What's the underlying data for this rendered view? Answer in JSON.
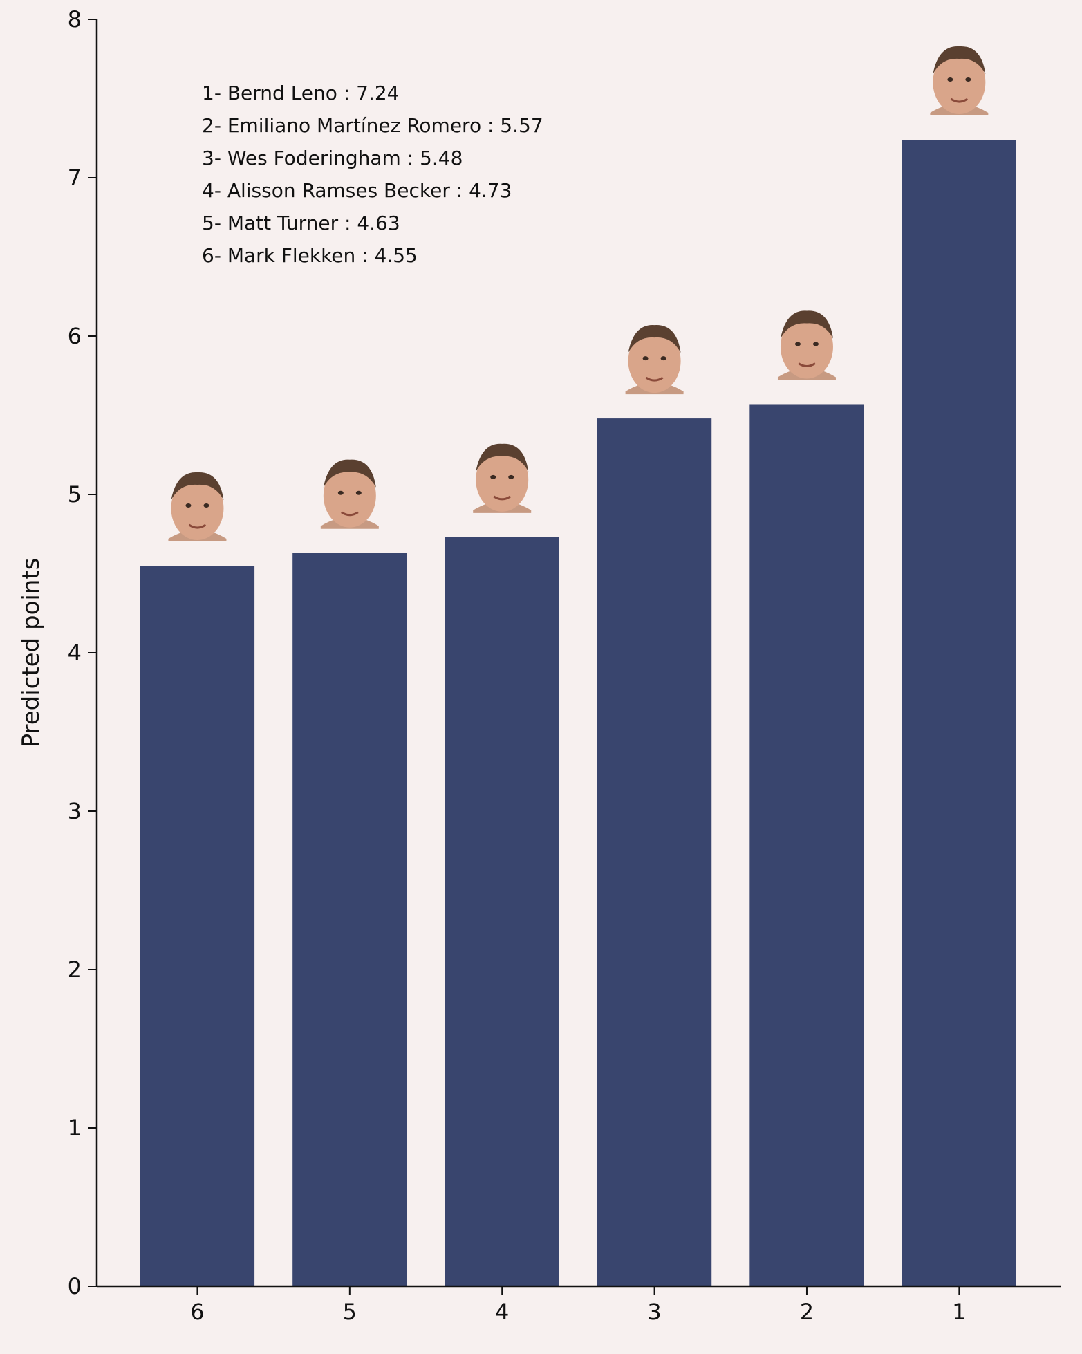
{
  "chart_data": {
    "type": "bar",
    "categories": [
      "6",
      "5",
      "4",
      "3",
      "2",
      "1"
    ],
    "values": [
      4.55,
      4.63,
      4.73,
      5.48,
      5.57,
      7.24
    ],
    "ylabel": "Predicted points",
    "xlabel": "",
    "ylim": [
      0,
      8
    ],
    "yticks": [
      0,
      1,
      2,
      3,
      4,
      5,
      6,
      7,
      8
    ],
    "bar_color": "#39456e",
    "grid": false,
    "annotations": [
      "1- Bernd Leno : 7.24",
      "2- Emiliano Martínez Romero : 5.57",
      "3- Wes Foderingham : 5.48",
      "4- Alisson Ramses Becker : 4.73",
      "5- Matt Turner : 4.63",
      "6- Mark Flekken : 4.55"
    ],
    "player_photos": [
      "player-headshot-icon",
      "player-headshot-icon",
      "player-headshot-icon",
      "player-headshot-icon",
      "player-headshot-icon",
      "player-headshot-icon"
    ]
  }
}
